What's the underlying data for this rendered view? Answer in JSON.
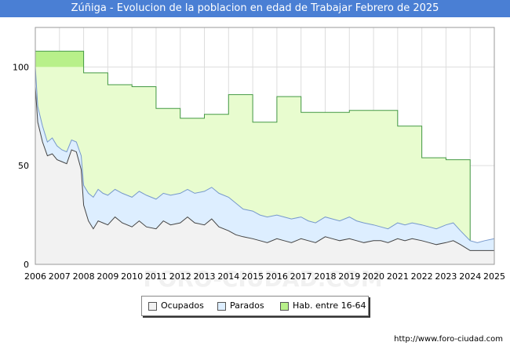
{
  "title": "Zúñiga - Evolucion de la poblacion en edad de Trabajar Febrero de 2025",
  "source": "http://www.foro-ciudad.com",
  "watermark": "FORO-CIUDAD.COM",
  "colors": {
    "title_bg": "#4a7fd4",
    "ocupados_fill": "#f2f2f2",
    "ocupados_line": "#444444",
    "parados_fill": "#ddeeff",
    "parados_line": "#7799cc",
    "hab_fill": "#e8fccf",
    "hab_fill_top": "#b8f08a",
    "hab_line": "#449944"
  },
  "chart_data": {
    "type": "area",
    "xlabel": "",
    "ylabel": "",
    "xlim": [
      2006,
      2025
    ],
    "ylim": [
      0,
      120
    ],
    "y_ticks": [
      0,
      50,
      100
    ],
    "x_ticks": [
      "2006",
      "2007",
      "2008",
      "2009",
      "2010",
      "2011",
      "2012",
      "2013",
      "2014",
      "2015",
      "2016",
      "2017",
      "2018",
      "2019",
      "2020",
      "2021",
      "2022",
      "2023",
      "2024",
      "2025"
    ],
    "grid": true,
    "legend_position": "bottom",
    "series": [
      {
        "name": "Hab. entre 16-64",
        "x": [
          2006.0,
          2008.0,
          2008.0,
          2009.0,
          2009.0,
          2010.0,
          2010.0,
          2011.0,
          2011.0,
          2012.0,
          2012.0,
          2013.0,
          2013.0,
          2014.0,
          2014.0,
          2015.0,
          2015.0,
          2016.0,
          2016.0,
          2017.0,
          2017.0,
          2018.0,
          2018.0,
          2019.0,
          2019.0,
          2020.0,
          2020.0,
          2021.0,
          2021.0,
          2022.0,
          2022.0,
          2023.0,
          2023.0,
          2024.0,
          2024.0,
          2025.0
        ],
        "values": [
          108,
          108,
          97,
          97,
          91,
          91,
          90,
          90,
          79,
          79,
          74,
          74,
          76,
          76,
          86,
          86,
          72,
          72,
          85,
          85,
          77,
          77,
          77,
          77,
          78,
          78,
          78,
          78,
          70,
          70,
          54,
          54,
          53,
          53,
          8,
          8
        ]
      },
      {
        "name": "Parados",
        "x": [
          2006.0,
          2006.1,
          2006.3,
          2006.5,
          2006.7,
          2006.9,
          2007.1,
          2007.3,
          2007.5,
          2007.7,
          2007.9,
          2008.0,
          2008.2,
          2008.4,
          2008.6,
          2008.8,
          2009.0,
          2009.3,
          2009.6,
          2010.0,
          2010.3,
          2010.6,
          2011.0,
          2011.3,
          2011.6,
          2012.0,
          2012.3,
          2012.6,
          2013.0,
          2013.3,
          2013.6,
          2014.0,
          2014.3,
          2014.6,
          2015.0,
          2015.3,
          2015.6,
          2016.0,
          2016.3,
          2016.6,
          2017.0,
          2017.3,
          2017.6,
          2018.0,
          2018.3,
          2018.6,
          2019.0,
          2019.3,
          2019.6,
          2020.0,
          2020.3,
          2020.6,
          2021.0,
          2021.3,
          2021.6,
          2022.0,
          2022.3,
          2022.6,
          2023.0,
          2023.3,
          2023.6,
          2024.0,
          2024.3,
          2024.6,
          2025.0
        ],
        "values": [
          100,
          80,
          70,
          62,
          64,
          60,
          58,
          57,
          63,
          62,
          55,
          40,
          36,
          34,
          38,
          36,
          35,
          38,
          36,
          34,
          37,
          35,
          33,
          36,
          35,
          36,
          38,
          36,
          37,
          39,
          36,
          34,
          31,
          28,
          27,
          25,
          24,
          25,
          24,
          23,
          24,
          22,
          21,
          24,
          23,
          22,
          24,
          22,
          21,
          20,
          19,
          18,
          21,
          20,
          21,
          20,
          19,
          18,
          20,
          21,
          17,
          12,
          11,
          12,
          13
        ]
      },
      {
        "name": "Ocupados",
        "x": [
          2006.0,
          2006.1,
          2006.3,
          2006.5,
          2006.7,
          2006.9,
          2007.1,
          2007.3,
          2007.5,
          2007.7,
          2007.9,
          2008.0,
          2008.2,
          2008.4,
          2008.6,
          2008.8,
          2009.0,
          2009.3,
          2009.6,
          2010.0,
          2010.3,
          2010.6,
          2011.0,
          2011.3,
          2011.6,
          2012.0,
          2012.3,
          2012.6,
          2013.0,
          2013.3,
          2013.6,
          2014.0,
          2014.3,
          2014.6,
          2015.0,
          2015.3,
          2015.6,
          2016.0,
          2016.3,
          2016.6,
          2017.0,
          2017.3,
          2017.6,
          2018.0,
          2018.3,
          2018.6,
          2019.0,
          2019.3,
          2019.6,
          2020.0,
          2020.3,
          2020.6,
          2021.0,
          2021.3,
          2021.6,
          2022.0,
          2022.3,
          2022.6,
          2023.0,
          2023.3,
          2023.6,
          2024.0,
          2024.3,
          2024.6,
          2025.0
        ],
        "values": [
          90,
          72,
          62,
          55,
          56,
          53,
          52,
          51,
          58,
          57,
          48,
          30,
          22,
          18,
          22,
          21,
          20,
          24,
          21,
          19,
          22,
          19,
          18,
          22,
          20,
          21,
          24,
          21,
          20,
          23,
          19,
          17,
          15,
          14,
          13,
          12,
          11,
          13,
          12,
          11,
          13,
          12,
          11,
          14,
          13,
          12,
          13,
          12,
          11,
          12,
          12,
          11,
          13,
          12,
          13,
          12,
          11,
          10,
          11,
          12,
          10,
          7,
          7,
          7,
          7
        ]
      }
    ]
  }
}
